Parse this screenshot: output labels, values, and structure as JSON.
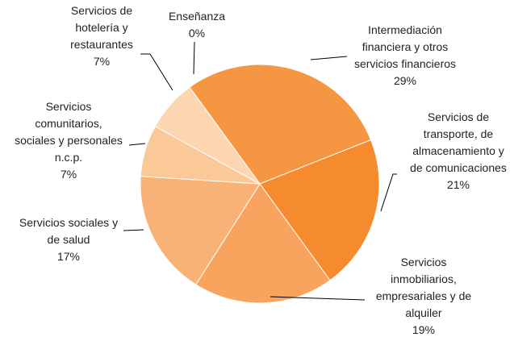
{
  "chart_data": {
    "type": "pie",
    "categories": [
      "Enseñanza",
      "Intermediación\nfinanciera y otros\nservicios financieros",
      "Servicios de\ntransporte, de\nalmacenamiento y\nde comunicaciones",
      "Servicios\ninmobiliarios,\nempresariales y de\nalquiler",
      "Servicios sociales y\nde salud",
      "Servicios\ncomunitarios,\nsociales y personales\nn.c.p.",
      "Servicios de\nhotelería y\nrestaurantes"
    ],
    "values": [
      0,
      29,
      21,
      19,
      17,
      7,
      7
    ],
    "value_labels": [
      "0%",
      "29%",
      "21%",
      "19%",
      "17%",
      "7%",
      "7%"
    ],
    "colors": [
      "#fde3c8",
      "#f59643",
      "#f58a2e",
      "#f8a45f",
      "#f9b275",
      "#fbc898",
      "#fcd6b0"
    ]
  }
}
